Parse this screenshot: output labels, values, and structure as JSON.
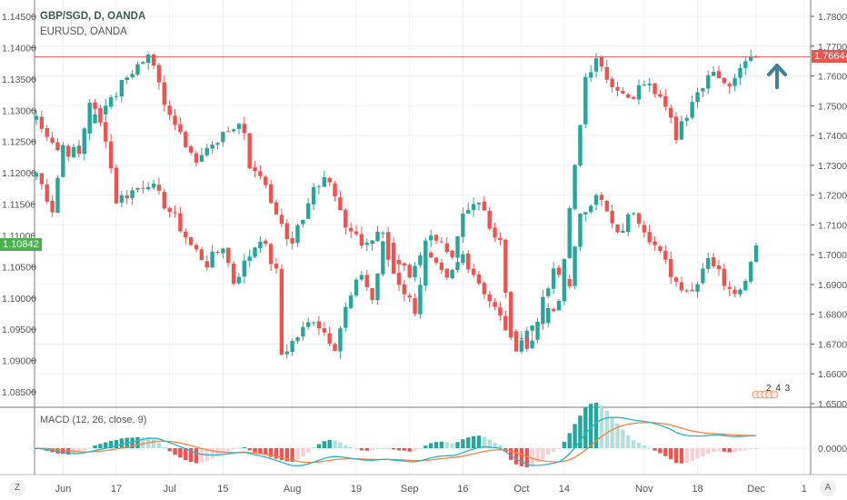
{
  "legend": {
    "main": "GBP/SGD, D, OANDA",
    "compare": "EURUSD, OANDA"
  },
  "macd_title": "MACD (12, 26, close, 9)",
  "events_badge": "2 4 3",
  "corner_left": "Z",
  "corner_right": "A",
  "colors": {
    "up": "#26a69a",
    "down": "#ef5350",
    "macd": "#26b5c9",
    "signal": "#ff7f3f",
    "arrow": "#3f8296",
    "compare_label": "#4caf50"
  },
  "chart_data": [
    {
      "type": "candlestick",
      "title": "GBP/SGD, D, OANDA",
      "axis": "right",
      "ylim": [
        1.645,
        1.785
      ],
      "yticks": [
        "1.78000",
        "1.77000",
        "1.76000",
        "1.75000",
        "1.74000",
        "1.73000",
        "1.72000",
        "1.71000",
        "1.70000",
        "1.69000",
        "1.68000",
        "1.67000",
        "1.66000",
        "1.65000"
      ],
      "last_price": "1.76644",
      "close_anchors": [
        [
          0,
          1.7458
        ],
        [
          4,
          1.7367
        ],
        [
          6,
          1.7336
        ],
        [
          21,
          1.7687
        ],
        [
          25,
          1.7458
        ],
        [
          30,
          1.7306
        ],
        [
          35,
          1.7397
        ],
        [
          39,
          1.7428
        ],
        [
          40,
          1.7306
        ],
        [
          45,
          1.7153
        ],
        [
          46,
          1.7092
        ],
        [
          48,
          1.7031
        ],
        [
          51,
          1.7184
        ],
        [
          54,
          1.7275
        ],
        [
          58,
          1.7092
        ],
        [
          62,
          1.7031
        ],
        [
          64,
          1.7092
        ],
        [
          67,
          1.7
        ],
        [
          70,
          1.6939
        ],
        [
          74,
          1.7062
        ],
        [
          78,
          1.7
        ],
        [
          80,
          1.7153
        ],
        [
          83,
          1.7184
        ],
        [
          87,
          1.7031
        ],
        [
          89,
          1.6726
        ],
        [
          92,
          1.6695
        ],
        [
          95,
          1.6787
        ],
        [
          98,
          1.6848
        ],
        [
          100,
          1.7153
        ],
        [
          103,
          1.758
        ],
        [
          105,
          1.7672
        ],
        [
          108,
          1.755
        ],
        [
          111,
          1.7519
        ],
        [
          114,
          1.758
        ],
        [
          118,
          1.7489
        ],
        [
          120,
          1.7397
        ],
        [
          123,
          1.7519
        ],
        [
          127,
          1.7611
        ],
        [
          130,
          1.758
        ],
        [
          133,
          1.7641
        ],
        [
          135,
          1.7664
        ]
      ]
    },
    {
      "type": "candlestick",
      "title": "EURUSD, OANDA",
      "axis": "left",
      "ylim": [
        1.0825,
        1.1475
      ],
      "yticks": [
        "1.14500",
        "1.14000",
        "1.13500",
        "1.13000",
        "1.12500",
        "1.12000",
        "1.11500",
        "1.11000",
        "1.10500",
        "1.10000",
        "1.09500",
        "1.09000",
        "1.08500"
      ],
      "last_price": "1.10842",
      "close_anchors": [
        [
          0,
          1.12
        ],
        [
          3,
          1.1142
        ],
        [
          5,
          1.1244
        ],
        [
          8,
          1.1229
        ],
        [
          10,
          1.1316
        ],
        [
          13,
          1.1258
        ],
        [
          15,
          1.1156
        ],
        [
          21,
          1.1186
        ],
        [
          26,
          1.1127
        ],
        [
          29,
          1.1084
        ],
        [
          32,
          1.1055
        ],
        [
          35,
          1.1084
        ],
        [
          37,
          1.1026
        ],
        [
          40,
          1.1069
        ],
        [
          42,
          1.1098
        ],
        [
          45,
          1.104
        ],
        [
          46,
          1.091
        ],
        [
          49,
          1.0939
        ],
        [
          52,
          1.0968
        ],
        [
          56,
          1.0924
        ],
        [
          58,
          1.0982
        ],
        [
          61,
          1.104
        ],
        [
          63,
          1.0997
        ],
        [
          65,
          1.1084
        ],
        [
          67,
          1.104
        ],
        [
          71,
          1.0982
        ],
        [
          73,
          1.1069
        ],
        [
          77,
          1.1026
        ],
        [
          80,
          1.1069
        ],
        [
          85,
          1.0997
        ],
        [
          88,
          1.0953
        ],
        [
          90,
          1.0924
        ],
        [
          94,
          1.0968
        ],
        [
          97,
          1.104
        ],
        [
          100,
          1.1026
        ],
        [
          102,
          1.1127
        ],
        [
          105,
          1.1171
        ],
        [
          109,
          1.1098
        ],
        [
          112,
          1.1142
        ],
        [
          117,
          1.1069
        ],
        [
          120,
          1.1026
        ],
        [
          123,
          1.1011
        ],
        [
          126,
          1.1069
        ],
        [
          129,
          1.1026
        ],
        [
          132,
          1.1011
        ],
        [
          135,
          1.1084
        ]
      ]
    },
    {
      "type": "macd",
      "title": "MACD (12, 26, close, 9)",
      "params": [
        12,
        26,
        9
      ],
      "source": "GBP/SGD close",
      "yticks": [
        "0.00000"
      ]
    }
  ],
  "xaxis": {
    "labels": [
      [
        "Jun",
        5
      ],
      [
        "17",
        15
      ],
      [
        "Jul",
        25
      ],
      [
        "15",
        35
      ],
      [
        "Aug",
        48
      ],
      [
        "19",
        60
      ],
      [
        "Sep",
        70
      ],
      [
        "16",
        80
      ],
      [
        "Oct",
        91
      ],
      [
        "14",
        99
      ],
      [
        "Nov",
        114
      ],
      [
        "18",
        124
      ],
      [
        "Dec",
        135
      ],
      [
        "1",
        144
      ]
    ]
  }
}
